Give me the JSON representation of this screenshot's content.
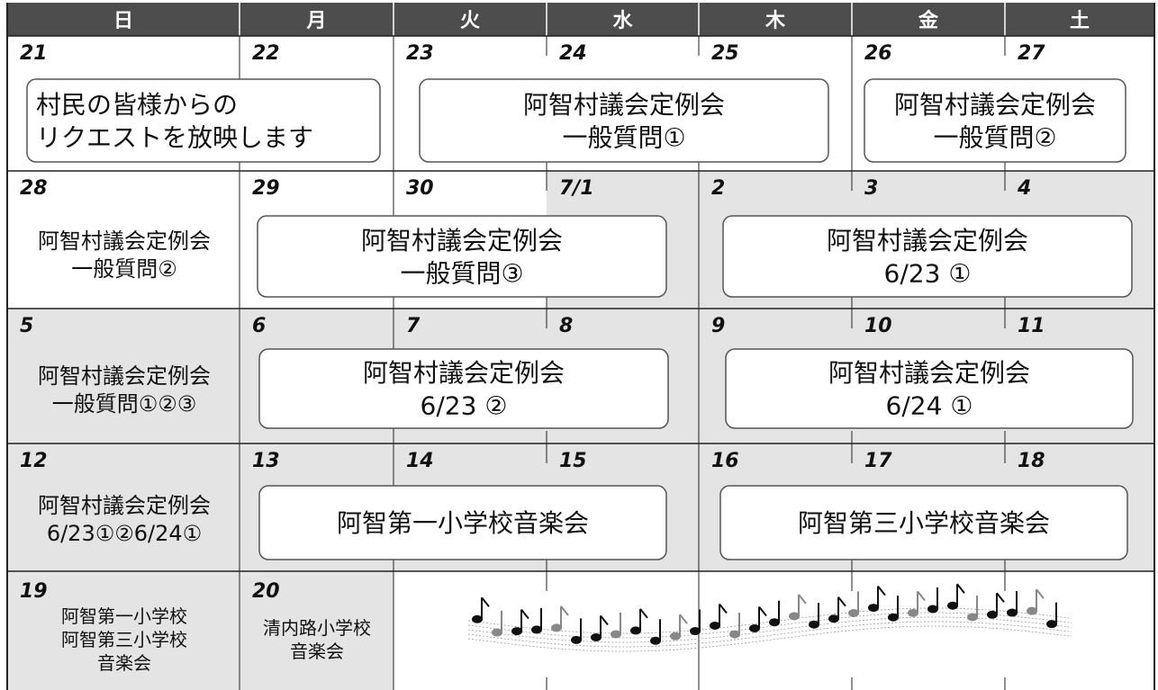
{
  "weekdays": [
    "日",
    "月",
    "火",
    "水",
    "木",
    "金",
    "土"
  ],
  "weeks": [
    {
      "dates": [
        "21",
        "22",
        "23",
        "24",
        "25",
        "26",
        "27"
      ],
      "events": [
        {
          "lines": [
            "村民の皆様からの",
            "リクエストを放映します"
          ]
        },
        {
          "lines": [
            "阿智村議会定例会",
            "一般質問①"
          ]
        },
        {
          "lines": [
            "阿智村議会定例会",
            "一般質問②"
          ]
        }
      ]
    },
    {
      "dates": [
        "28",
        "29",
        "30",
        "7/1",
        "2",
        "3",
        "4"
      ],
      "events": [
        {
          "lines": [
            "阿智村議会定例会",
            "一般質問②"
          ]
        },
        {
          "lines": [
            "阿智村議会定例会",
            "一般質問③"
          ]
        },
        {
          "lines": [
            "阿智村議会定例会",
            "6/23 ①"
          ]
        }
      ]
    },
    {
      "dates": [
        "5",
        "6",
        "7",
        "8",
        "9",
        "10",
        "11"
      ],
      "events": [
        {
          "lines": [
            "阿智村議会定例会",
            "一般質問①②③"
          ]
        },
        {
          "lines": [
            "阿智村議会定例会",
            "6/23 ②"
          ]
        },
        {
          "lines": [
            "阿智村議会定例会",
            "6/24 ①"
          ]
        }
      ]
    },
    {
      "dates": [
        "12",
        "13",
        "14",
        "15",
        "16",
        "17",
        "18"
      ],
      "events": [
        {
          "lines": [
            "阿智村議会定例会",
            "6/23①②6/24①"
          ]
        },
        {
          "lines": [
            "阿智第一小学校音楽会"
          ]
        },
        {
          "lines": [
            "阿智第三小学校音楽会"
          ]
        }
      ]
    },
    {
      "dates": [
        "19",
        "20"
      ],
      "events": [
        {
          "lines": [
            "阿智第一小学校",
            "阿智第三小学校",
            "音楽会"
          ]
        },
        {
          "lines": [
            "清内路小学校",
            "音楽会"
          ]
        }
      ]
    }
  ]
}
